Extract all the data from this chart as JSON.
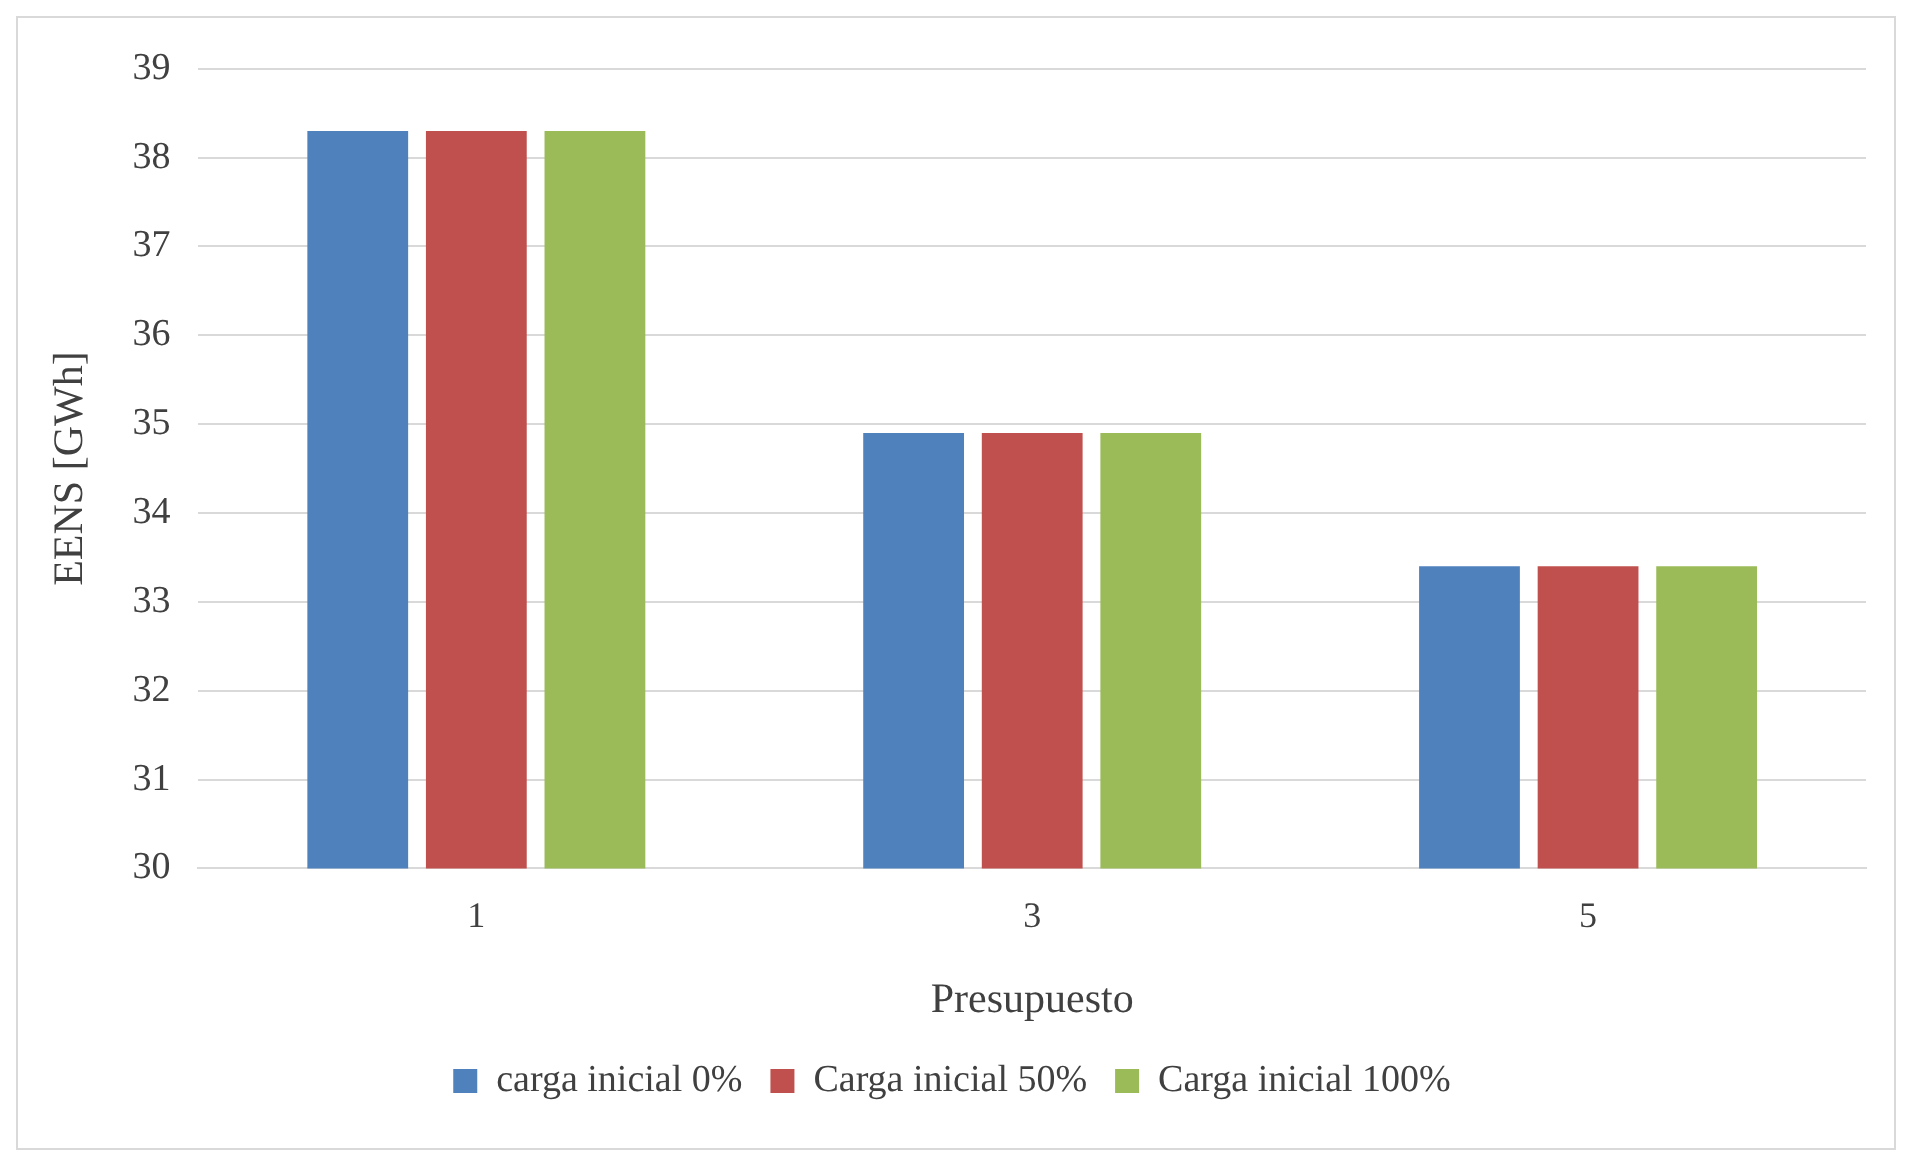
{
  "chart_data": {
    "type": "bar",
    "xlabel": "Presupuesto",
    "ylabel": "EENS [GWh]",
    "categories": [
      "1",
      "3",
      "5"
    ],
    "series": [
      {
        "name": "carga inicial 0%",
        "color": "#4f81bd",
        "values": [
          38.3,
          34.9,
          33.4
        ]
      },
      {
        "name": "Carga inicial 50%",
        "color": "#c0504d",
        "values": [
          38.3,
          34.9,
          33.4
        ]
      },
      {
        "name": "Carga inicial 100%",
        "color": "#9bbb59",
        "values": [
          38.3,
          34.9,
          33.4
        ]
      }
    ],
    "ylim": [
      30,
      39
    ],
    "yticks": [
      30,
      31,
      32,
      33,
      34,
      35,
      36,
      37,
      38,
      39
    ],
    "grid": "y",
    "legend": "bottom"
  }
}
